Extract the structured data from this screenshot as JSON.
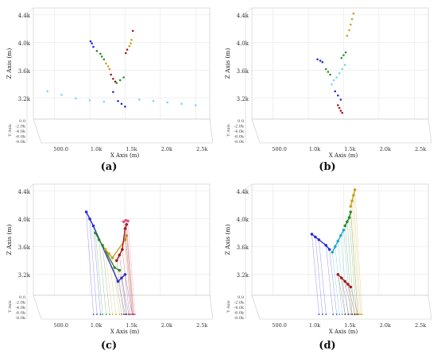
{
  "captions": [
    "(a)",
    "(b)",
    "(c)",
    "(d)"
  ],
  "chart_data": [
    {
      "type": "scatter",
      "title": "",
      "xlabel": "X Axis (m)",
      "ylabel": "Z Axis (m)",
      "depth_label": "Y Axis",
      "x_ticks": [
        "500.0",
        "1.0k",
        "1.5k",
        "2.0k",
        "2.5k"
      ],
      "z_ticks": [
        "4.4k",
        "4.0k",
        "3.6k",
        "3.2k"
      ],
      "y_ticks": [
        "0.0",
        "-2.0k",
        "-4.0k",
        "-6.0k",
        "-8.0k"
      ],
      "xlim": [
        200,
        2700
      ],
      "zlim": [
        2900,
        4500
      ],
      "grid": true,
      "series": [
        {
          "color": "#2a2ad4",
          "points": [
            [
              1010,
              4020
            ],
            [
              1030,
              3990
            ],
            [
              1050,
              3940
            ],
            [
              1330,
              3290
            ],
            [
              1400,
              3160
            ],
            [
              1450,
              3120
            ],
            [
              1500,
              3080
            ]
          ]
        },
        {
          "color": "#2a8a2a",
          "points": [
            [
              1100,
              3880
            ],
            [
              1150,
              3840
            ],
            [
              1170,
              3800
            ],
            [
              1200,
              3760
            ],
            [
              1380,
              3420
            ],
            [
              1430,
              3460
            ],
            [
              1480,
              3500
            ]
          ]
        },
        {
          "color": "#c9a020",
          "points": [
            [
              1230,
              3700
            ],
            [
              1260,
              3660
            ],
            [
              1280,
              3620
            ],
            [
              1560,
              3950
            ],
            [
              1580,
              3990
            ],
            [
              1590,
              4040
            ]
          ]
        },
        {
          "color": "#a01818",
          "points": [
            [
              1300,
              3540
            ],
            [
              1330,
              3480
            ],
            [
              1360,
              3440
            ],
            [
              1510,
              3850
            ],
            [
              1530,
              3900
            ],
            [
              1610,
              4170
            ]
          ]
        },
        {
          "color": "#7ad4e8",
          "points": [
            [
              400,
              3300
            ],
            [
              600,
              3250
            ],
            [
              800,
              3200
            ],
            [
              1000,
              3170
            ],
            [
              1200,
              3150
            ],
            [
              1700,
              3180
            ],
            [
              1900,
              3160
            ],
            [
              2100,
              3140
            ],
            [
              2300,
              3120
            ],
            [
              2500,
              3100
            ]
          ]
        }
      ]
    },
    {
      "type": "scatter",
      "title": "",
      "xlabel": "X Axis (m)",
      "ylabel": "Z Axis (m)",
      "depth_label": "Y Axis",
      "x_ticks": [
        "500.0",
        "1.0k",
        "1.5k",
        "2.0k",
        "2.5k"
      ],
      "z_ticks": [
        "4.4k",
        "4.0k",
        "3.6k",
        "3.2k"
      ],
      "y_ticks": [
        "0.0",
        "-2.0k",
        "-4.0k",
        "-6.0k",
        "-8.0k"
      ],
      "xlim": [
        200,
        2700
      ],
      "zlim": [
        2900,
        4500
      ],
      "grid": true,
      "series": [
        {
          "color": "#2a2ad4",
          "points": [
            [
              1130,
              3760
            ],
            [
              1170,
              3740
            ],
            [
              1200,
              3720
            ],
            [
              1380,
              3300
            ],
            [
              1420,
              3240
            ],
            [
              1460,
              3180
            ]
          ]
        },
        {
          "color": "#2a8a2a",
          "points": [
            [
              1250,
              3620
            ],
            [
              1280,
              3580
            ],
            [
              1310,
              3540
            ],
            [
              1470,
              3780
            ],
            [
              1500,
              3820
            ],
            [
              1530,
              3860
            ]
          ]
        },
        {
          "color": "#c9a020",
          "points": [
            [
              1550,
              4100
            ],
            [
              1580,
              4180
            ],
            [
              1600,
              4260
            ],
            [
              1620,
              4340
            ],
            [
              1640,
              4420
            ]
          ]
        },
        {
          "color": "#a01818",
          "points": [
            [
              1420,
              3100
            ],
            [
              1440,
              3060
            ],
            [
              1460,
              3020
            ],
            [
              1480,
              2990
            ]
          ]
        },
        {
          "color": "#7ad4e8",
          "points": [
            [
              1330,
              3400
            ],
            [
              1360,
              3460
            ],
            [
              1400,
              3500
            ],
            [
              1440,
              3560
            ],
            [
              1480,
              3620
            ],
            [
              1520,
              3680
            ]
          ]
        }
      ]
    },
    {
      "type": "line",
      "title": "",
      "xlabel": "X Axis (m)",
      "ylabel": "Z Axis (m)",
      "depth_label": "Y Axis",
      "x_ticks": [
        "500.0",
        "1.0k",
        "1.5k",
        "2.0k",
        "2.5k"
      ],
      "z_ticks": [
        "4.4k",
        "4.0k",
        "3.6k",
        "3.2k"
      ],
      "y_ticks": [
        "0.0",
        "-2.0k",
        "-4.0k",
        "-6.0k",
        "-8.0k"
      ],
      "xlim": [
        200,
        2700
      ],
      "zlim": [
        2900,
        4500
      ],
      "grid": true,
      "series": [
        {
          "color": "#2a2ad4",
          "points": [
            [
              950,
              4100
            ],
            [
              1000,
              4000
            ],
            [
              1050,
              3900
            ],
            [
              1400,
              3100
            ],
            [
              1450,
              3150
            ],
            [
              1500,
              3200
            ]
          ]
        },
        {
          "color": "#2a8a2a",
          "points": [
            [
              1080,
              3800
            ],
            [
              1130,
              3700
            ],
            [
              1180,
              3620
            ],
            [
              1350,
              3300
            ],
            [
              1420,
              3260
            ]
          ]
        },
        {
          "color": "#c9a020",
          "points": [
            [
              1220,
              3560
            ],
            [
              1270,
              3500
            ],
            [
              1320,
              3440
            ],
            [
              1500,
              3700
            ],
            [
              1520,
              3760
            ]
          ]
        },
        {
          "color": "#a01818",
          "points": [
            [
              1380,
              3400
            ],
            [
              1420,
              3480
            ],
            [
              1460,
              3560
            ],
            [
              1500,
              3860
            ],
            [
              1520,
              3920
            ]
          ]
        },
        {
          "color": "#e05090",
          "points": [
            [
              1480,
              3960
            ],
            [
              1510,
              3980
            ],
            [
              1540,
              3970
            ]
          ]
        }
      ]
    },
    {
      "type": "line",
      "title": "",
      "xlabel": "X Axis (m)",
      "ylabel": "Z Axis (m)",
      "depth_label": "Y Axis",
      "x_ticks": [
        "500.0",
        "1.0k",
        "1.5k",
        "2.0k",
        "2.5k"
      ],
      "z_ticks": [
        "4.4k",
        "4.0k",
        "3.6k",
        "3.2k"
      ],
      "y_ticks": [
        "0.0",
        "-2.0k",
        "-4.0k",
        "-6.0k",
        "-8.0k"
      ],
      "xlim": [
        200,
        2700
      ],
      "zlim": [
        2900,
        4500
      ],
      "grid": true,
      "series": [
        {
          "color": "#2a2ad4",
          "points": [
            [
              1050,
              3780
            ],
            [
              1100,
              3740
            ],
            [
              1150,
              3700
            ],
            [
              1250,
              3620
            ],
            [
              1300,
              3560
            ]
          ]
        },
        {
          "color": "#20a8c8",
          "points": [
            [
              1340,
              3520
            ],
            [
              1380,
              3600
            ],
            [
              1420,
              3680
            ],
            [
              1460,
              3760
            ],
            [
              1500,
              3840
            ]
          ]
        },
        {
          "color": "#2a8a2a",
          "points": [
            [
              1520,
              3900
            ],
            [
              1550,
              3960
            ],
            [
              1580,
              4020
            ],
            [
              1600,
              4100
            ]
          ]
        },
        {
          "color": "#c9a020",
          "points": [
            [
              1600,
              4180
            ],
            [
              1620,
              4260
            ],
            [
              1640,
              4340
            ],
            [
              1660,
              4420
            ]
          ]
        },
        {
          "color": "#a01818",
          "points": [
            [
              1420,
              3200
            ],
            [
              1470,
              3150
            ],
            [
              1520,
              3100
            ],
            [
              1560,
              3060
            ],
            [
              1600,
              3020
            ]
          ]
        }
      ]
    }
  ]
}
